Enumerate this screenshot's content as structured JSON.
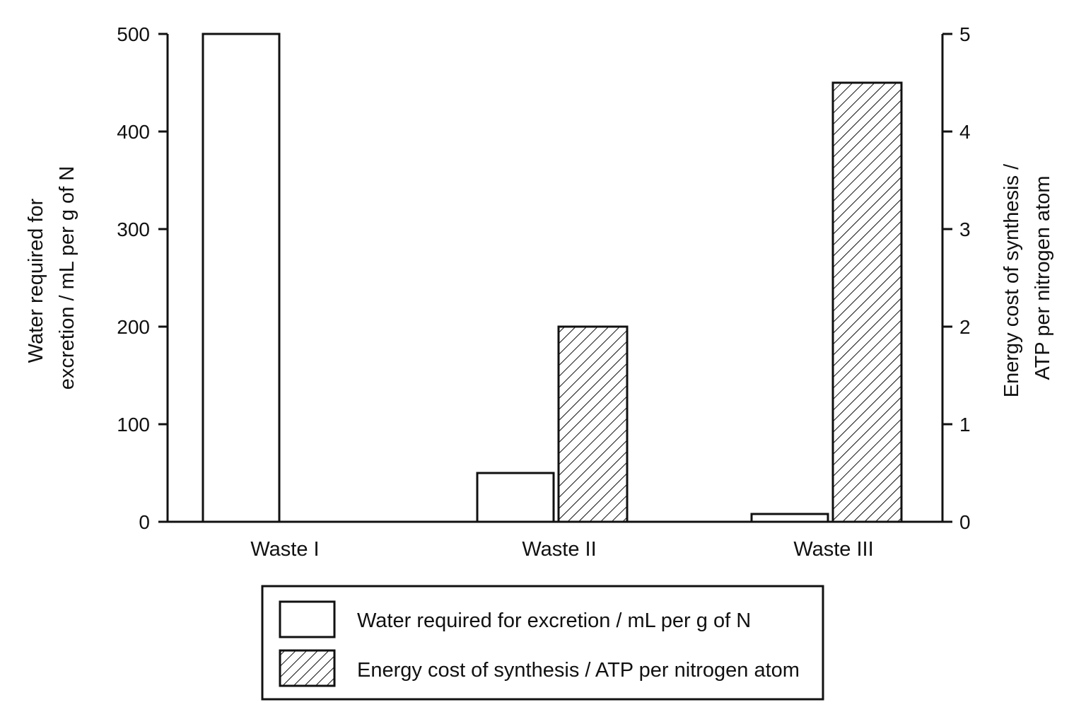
{
  "chart_data": {
    "type": "bar",
    "categories": [
      "Waste I",
      "Waste II",
      "Waste III"
    ],
    "series": [
      {
        "name": "Water required for excretion / mL per g of N",
        "axis": "left",
        "fill": "none",
        "values": [
          500,
          50,
          8
        ]
      },
      {
        "name": "Energy cost of synthesis / ATP per nitrogen atom",
        "axis": "right",
        "fill": "diagonal-hatch",
        "values": [
          0,
          2,
          4.5
        ]
      }
    ],
    "y_left": {
      "label_lines": [
        "Water required for",
        "excretion / mL per g of N"
      ],
      "ylim": [
        0,
        500
      ],
      "ticks": [
        0,
        100,
        200,
        300,
        400,
        500
      ]
    },
    "y_right": {
      "label_lines": [
        "Energy cost of synthesis /",
        "ATP per nitrogen atom"
      ],
      "ylim": [
        0,
        5
      ],
      "ticks": [
        0,
        1,
        2,
        3,
        4,
        5
      ]
    },
    "legend": {
      "placement": "bottom-center",
      "entries": [
        "Water required for excretion / mL per g of N",
        "Energy cost of synthesis / ATP per nitrogen atom"
      ]
    },
    "grid": false,
    "colors": {
      "stroke": "#111111",
      "background": "#ffffff"
    }
  }
}
